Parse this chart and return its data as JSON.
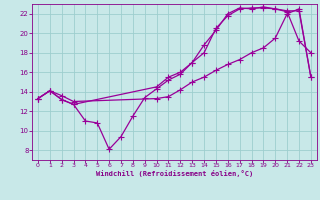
{
  "bg_color": "#c8e8e8",
  "grid_color": "#9ecece",
  "line_color": "#990099",
  "xlabel": "Windchill (Refroidissement éolien,°C)",
  "xlabel_color": "#880088",
  "tick_color": "#880088",
  "xlim": [
    -0.5,
    23.5
  ],
  "ylim": [
    7,
    23
  ],
  "yticks": [
    8,
    10,
    12,
    14,
    16,
    18,
    20,
    22
  ],
  "xticks": [
    0,
    1,
    2,
    3,
    4,
    5,
    6,
    7,
    8,
    9,
    10,
    11,
    12,
    13,
    14,
    15,
    16,
    17,
    18,
    19,
    20,
    21,
    22,
    23
  ],
  "line1_x": [
    0,
    1,
    2,
    3,
    10,
    11,
    12,
    13,
    14,
    15,
    16,
    17,
    18,
    19,
    20,
    21,
    22,
    23
  ],
  "line1_y": [
    13.3,
    14.1,
    13.6,
    13.0,
    13.3,
    13.5,
    14.2,
    15.0,
    15.5,
    16.2,
    16.8,
    17.3,
    18.0,
    18.5,
    19.5,
    22.0,
    22.5,
    15.5
  ],
  "line2_x": [
    0,
    1,
    2,
    3,
    4,
    5,
    6,
    7,
    8,
    9,
    10,
    11,
    12,
    13,
    14,
    15,
    16,
    17,
    18,
    19,
    20,
    21,
    22,
    23
  ],
  "line2_y": [
    13.3,
    14.1,
    13.2,
    12.7,
    11.0,
    10.8,
    8.1,
    9.4,
    11.5,
    13.4,
    14.3,
    15.2,
    15.8,
    17.0,
    18.8,
    20.3,
    22.0,
    22.6,
    22.5,
    22.7,
    22.5,
    22.2,
    19.2,
    18.0
  ],
  "line3_x": [
    0,
    1,
    2,
    3,
    10,
    11,
    12,
    13,
    14,
    15,
    16,
    17,
    18,
    19,
    20,
    21,
    22,
    23
  ],
  "line3_y": [
    13.3,
    14.1,
    13.2,
    12.7,
    14.5,
    15.5,
    16.0,
    17.0,
    18.0,
    20.5,
    21.8,
    22.5,
    22.6,
    22.6,
    22.5,
    22.3,
    22.3,
    15.5
  ]
}
